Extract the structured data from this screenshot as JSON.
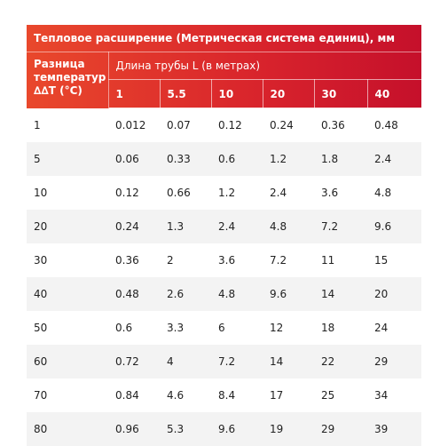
{
  "table": {
    "title": "Тепловое расширение (Метрическая система единиц), мм",
    "row_header": "Разница температур ∆∆T (°C)",
    "column_group": "Длина трубы L (в метрах)",
    "columns": [
      1,
      5.5,
      10,
      20,
      30,
      40
    ],
    "rows": [
      [
        1,
        0.012,
        0.07,
        0.12,
        0.24,
        0.36,
        0.48
      ],
      [
        5,
        0.06,
        0.33,
        0.6,
        1.2,
        1.8,
        2.4
      ],
      [
        10,
        0.12,
        0.66,
        1.2,
        2.4,
        3.6,
        4.8
      ],
      [
        20,
        0.24,
        1.3,
        2.4,
        4.8,
        7.2,
        9.6
      ],
      [
        30,
        0.36,
        2,
        3.6,
        7.2,
        11,
        15
      ],
      [
        40,
        0.48,
        2.6,
        4.8,
        9.6,
        14,
        20
      ],
      [
        50,
        0.6,
        3.3,
        6,
        12,
        18,
        24
      ],
      [
        60,
        0.72,
        4,
        7.2,
        14,
        22,
        29
      ],
      [
        70,
        0.84,
        4.6,
        8.4,
        17,
        25,
        34
      ],
      [
        80,
        0.96,
        5.3,
        9.6,
        19,
        29,
        39
      ]
    ]
  }
}
